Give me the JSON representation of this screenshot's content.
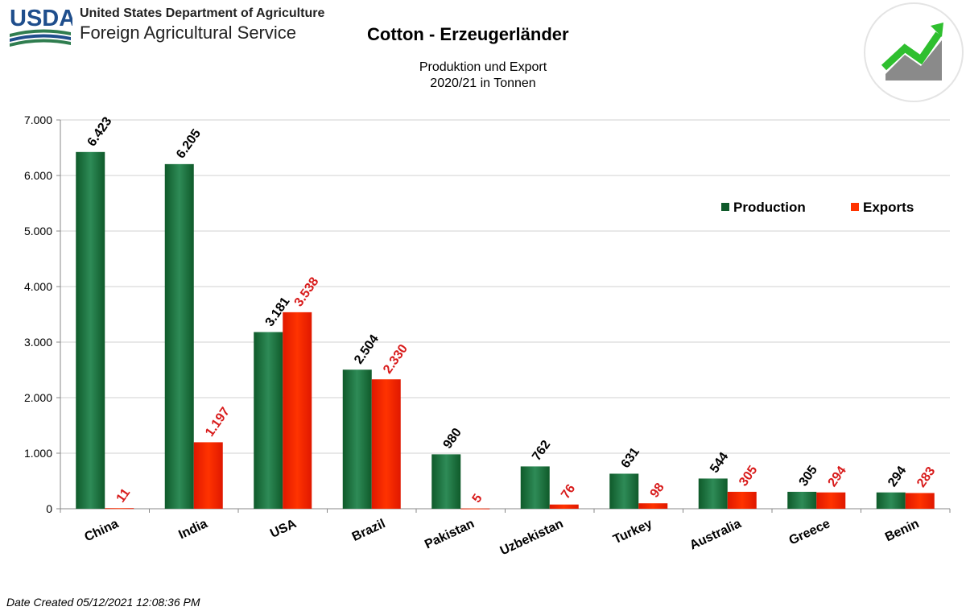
{
  "header": {
    "logo_text": "USDA",
    "department": "United States Department of Agriculture",
    "service": "Foreign Agricultural Service"
  },
  "footer": {
    "date_created": "Date Created  05/12/2021 12:08:36 PM"
  },
  "colors": {
    "production": "#2e8b57",
    "production_dark": "#0f5a2a",
    "exports": "#ff3300",
    "exports_label": "#d81b1b",
    "logo_blue": "#1f4e8c",
    "logo_green": "#2f7d4f",
    "grid": "#d0d0d0"
  },
  "chart_data": {
    "type": "bar",
    "title": "Cotton - Erzeugerländer",
    "subtitle": [
      "Produktion und Export",
      "2020/21 in Tonnen"
    ],
    "categories": [
      "China",
      "India",
      "USA",
      "Brazil",
      "Pakistan",
      "Uzbekistan",
      "Turkey",
      "Australia",
      "Greece",
      "Benin"
    ],
    "series": [
      {
        "name": "Production",
        "values": [
          6423,
          6205,
          3181,
          2504,
          980,
          762,
          631,
          544,
          305,
          294
        ],
        "labels": [
          "6.423",
          "6.205",
          "3.181",
          "2.504",
          "980",
          "762",
          "631",
          "544",
          "305",
          "294"
        ]
      },
      {
        "name": "Exports",
        "values": [
          11,
          1197,
          3538,
          2330,
          5,
          76,
          98,
          305,
          294,
          283
        ],
        "labels": [
          "11",
          "1.197",
          "3.538",
          "2.330",
          "5",
          "76",
          "98",
          "305",
          "294",
          "283"
        ]
      }
    ],
    "ylim": [
      0,
      7000
    ],
    "yticks": [
      0,
      1000,
      2000,
      3000,
      4000,
      5000,
      6000,
      7000
    ],
    "ytick_labels": [
      "0",
      "1.000",
      "2.000",
      "3.000",
      "4.000",
      "5.000",
      "6.000",
      "7.000"
    ],
    "grid": true,
    "legend_position": "top-right"
  }
}
